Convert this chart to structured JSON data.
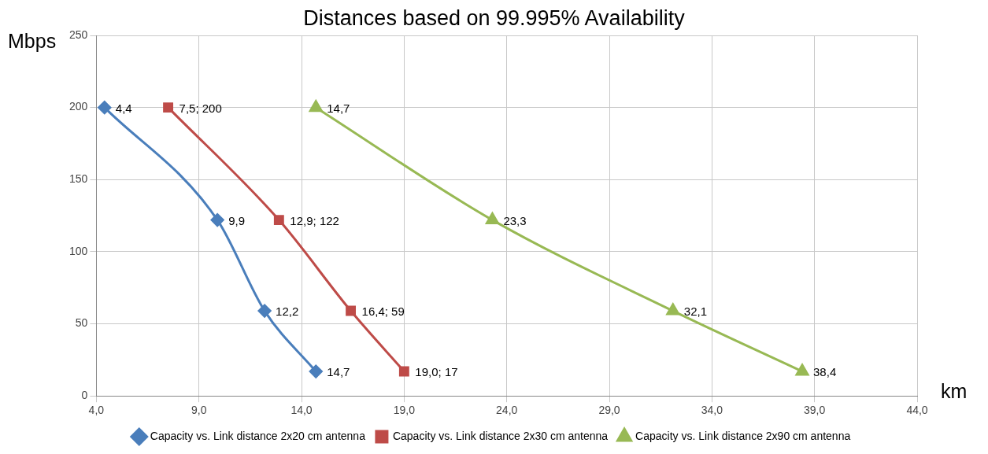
{
  "chart_data": {
    "type": "line",
    "title": "Distances based on 99.995% Availability",
    "xlabel": "km",
    "ylabel": "Mbps",
    "xlim": [
      4,
      44
    ],
    "xticks": [
      {
        "value": 4,
        "label": "4,0"
      },
      {
        "value": 9,
        "label": "9,0"
      },
      {
        "value": 14,
        "label": "14,0"
      },
      {
        "value": 19,
        "label": "19,0"
      },
      {
        "value": 24,
        "label": "24,0"
      },
      {
        "value": 29,
        "label": "29,0"
      },
      {
        "value": 34,
        "label": "34,0"
      },
      {
        "value": 39,
        "label": "39,0"
      },
      {
        "value": 44,
        "label": "44,0"
      }
    ],
    "ylim": [
      0,
      250
    ],
    "yticks": [
      0,
      50,
      100,
      150,
      200,
      250
    ],
    "grid": true,
    "legend": "bottom",
    "series": [
      {
        "name": "Capacity vs. Link distance 2x20 cm antenna",
        "color": "#4a7ebb",
        "marker": "diamond",
        "x": [
          4.4,
          9.9,
          12.2,
          14.7
        ],
        "values": [
          200,
          122,
          59,
          17
        ]
      },
      {
        "name": "Capacity vs. Link distance 2x30 cm antenna",
        "color": "#be4b48",
        "marker": "square",
        "x": [
          7.5,
          12.9,
          16.4,
          19.0
        ],
        "values": [
          200,
          122,
          59,
          17
        ]
      },
      {
        "name": "Capacity vs. Link distance 2x90 cm antenna",
        "color": "#98b954",
        "marker": "triangle",
        "x": [
          14.7,
          23.3,
          32.1,
          38.4
        ],
        "values": [
          200,
          122,
          59,
          17
        ]
      }
    ],
    "annotations": [
      {
        "text": "4,4",
        "x": 4.4,
        "y": 200
      },
      {
        "text": "9,9",
        "x": 9.9,
        "y": 122
      },
      {
        "text": "12,2",
        "x": 12.2,
        "y": 59
      },
      {
        "text": "14,7",
        "x": 14.7,
        "y": 17
      },
      {
        "text": "7,5; 200",
        "x": 7.5,
        "y": 200
      },
      {
        "text": "12,9; 122",
        "x": 12.9,
        "y": 122
      },
      {
        "text": "16,4; 59",
        "x": 16.4,
        "y": 59
      },
      {
        "text": "19,0; 17",
        "x": 19.0,
        "y": 17
      },
      {
        "text": "14,7",
        "x": 14.7,
        "y": 200
      },
      {
        "text": "23,3",
        "x": 23.3,
        "y": 122
      },
      {
        "text": "32,1",
        "x": 32.1,
        "y": 59
      },
      {
        "text": "38,4",
        "x": 38.4,
        "y": 17
      }
    ]
  }
}
